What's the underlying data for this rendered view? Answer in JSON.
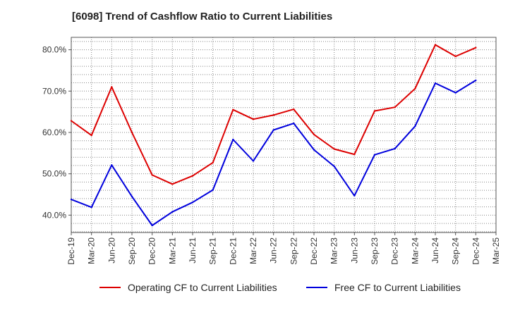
{
  "title": "[6098]  Trend of Cashflow Ratio to Current Liabilities",
  "colors": {
    "operating": "#dd0000",
    "free": "#0000dd",
    "grid": "#888888",
    "axis": "#555555"
  },
  "chart_data": {
    "type": "line",
    "title": "[6098]  Trend of Cashflow Ratio to Current Liabilities",
    "xlabel": "",
    "ylabel": "",
    "ylim": [
      35.8,
      83.0
    ],
    "y_ticks": [
      "40.0%",
      "50.0%",
      "60.0%",
      "70.0%",
      "80.0%"
    ],
    "y_tick_values": [
      40,
      50,
      60,
      70,
      80
    ],
    "grid": true,
    "legend_position": "bottom",
    "x": [
      "Dec-19",
      "Mar-20",
      "Jun-20",
      "Sep-20",
      "Dec-20",
      "Mar-21",
      "Jun-21",
      "Sep-21",
      "Dec-21",
      "Mar-22",
      "Jun-22",
      "Sep-22",
      "Dec-22",
      "Mar-23",
      "Jun-23",
      "Sep-23",
      "Dec-23",
      "Mar-24",
      "Jun-24",
      "Sep-24",
      "Dec-24",
      "Mar-25"
    ],
    "series": [
      {
        "name": "Operating CF to Current Liabilities",
        "color": "#dd0000",
        "values": [
          62.8,
          59.3,
          71.0,
          60.0,
          49.7,
          47.5,
          49.5,
          52.7,
          65.5,
          63.2,
          64.2,
          65.6,
          59.5,
          56.0,
          54.7,
          65.2,
          66.1,
          70.6,
          81.2,
          78.4,
          80.5,
          null
        ]
      },
      {
        "name": "Free CF to Current Liabilities",
        "color": "#0000dd",
        "values": [
          43.8,
          41.9,
          52.1,
          44.5,
          37.5,
          40.8,
          43.1,
          46.1,
          58.3,
          53.1,
          60.6,
          62.2,
          55.8,
          51.8,
          44.7,
          54.6,
          56.1,
          61.5,
          71.9,
          69.6,
          72.6,
          null
        ]
      }
    ]
  }
}
